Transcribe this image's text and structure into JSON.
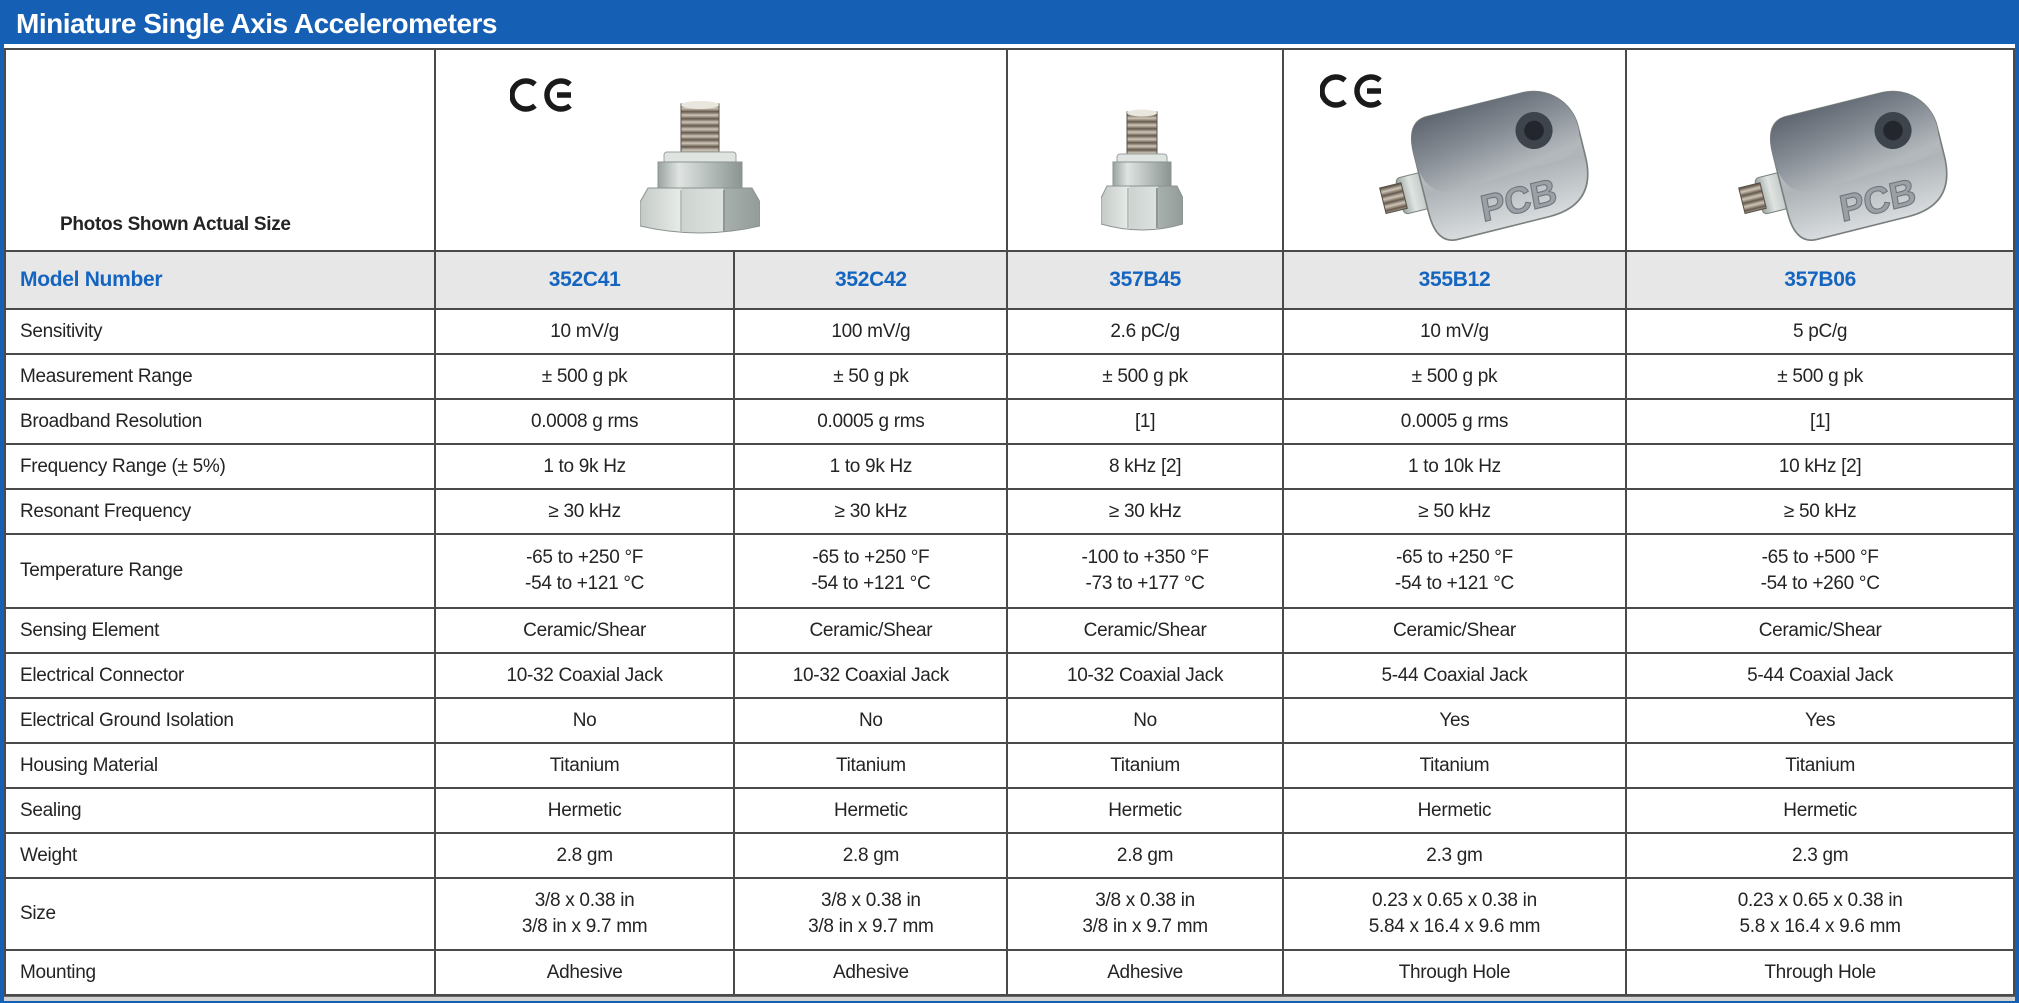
{
  "title": "Miniature Single Axis Accelerometers",
  "photo_row": {
    "label": "Photos Shown Actual Size",
    "ce_mark_cells": [
      "352C41/352C42",
      "355B12"
    ]
  },
  "model_row": {
    "label": "Model Number",
    "models": [
      "352C41",
      "352C42",
      "357B45",
      "355B12",
      "357B06"
    ]
  },
  "specs": [
    {
      "label": "Sensitivity",
      "values": [
        "10 mV/g",
        "100 mV/g",
        "2.6 pC/g",
        "10 mV/g",
        "5 pC/g"
      ]
    },
    {
      "label": "Measurement Range",
      "values": [
        "± 500 g pk",
        "± 50 g pk",
        "± 500 g pk",
        "± 500 g pk",
        "± 500 g pk"
      ]
    },
    {
      "label": "Broadband Resolution",
      "values": [
        "0.0008 g rms",
        "0.0005 g rms",
        "[1]",
        "0.0005 g rms",
        "[1]"
      ]
    },
    {
      "label": "Frequency Range (± 5%)",
      "values": [
        "1 to 9k Hz",
        "1 to 9k Hz",
        "8 kHz [2]",
        "1 to 10k Hz",
        "10 kHz [2]"
      ]
    },
    {
      "label": "Resonant Frequency",
      "values": [
        "≥ 30 kHz",
        "≥ 30 kHz",
        "≥ 30 kHz",
        "≥ 50 kHz",
        "≥ 50 kHz"
      ]
    },
    {
      "label": "Temperature Range",
      "values": [
        "-65 to +250 °F\n-54 to +121 °C",
        "-65 to +250 °F\n-54 to +121 °C",
        "-100 to +350 °F\n-73 to +177 °C",
        "-65 to +250 °F\n-54 to +121 °C",
        "-65 to +500 °F\n-54 to +260 °C"
      ]
    },
    {
      "label": "Sensing Element",
      "values": [
        "Ceramic/Shear",
        "Ceramic/Shear",
        "Ceramic/Shear",
        "Ceramic/Shear",
        "Ceramic/Shear"
      ]
    },
    {
      "label": "Electrical Connector",
      "values": [
        "10-32 Coaxial Jack",
        "10-32 Coaxial Jack",
        "10-32 Coaxial Jack",
        "5-44 Coaxial Jack",
        "5-44 Coaxial Jack"
      ]
    },
    {
      "label": "Electrical Ground Isolation",
      "values": [
        "No",
        "No",
        "No",
        "Yes",
        "Yes"
      ]
    },
    {
      "label": "Housing Material",
      "values": [
        "Titanium",
        "Titanium",
        "Titanium",
        "Titanium",
        "Titanium"
      ]
    },
    {
      "label": "Sealing",
      "values": [
        "Hermetic",
        "Hermetic",
        "Hermetic",
        "Hermetic",
        "Hermetic"
      ]
    },
    {
      "label": "Weight",
      "values": [
        "2.8 gm",
        "2.8 gm",
        "2.8 gm",
        "2.3 gm",
        "2.3 gm"
      ]
    },
    {
      "label": "Size",
      "values": [
        "3/8 x 0.38 in\n3/8 in x 9.7 mm",
        "3/8 x 0.38 in\n3/8 in x 9.7 mm",
        "3/8 x 0.38 in\n3/8 in x 9.7 mm",
        "0.23 x 0.65 x 0.38 in\n5.84 x 16.4 x 9.6 mm",
        "0.23 x 0.65 x 0.38 in\n5.8 x 16.4 x 9.6 mm"
      ]
    },
    {
      "label": "Mounting",
      "values": [
        "Adhesive",
        "Adhesive",
        "Adhesive",
        "Through Hole",
        "Through Hole"
      ]
    }
  ],
  "colors": {
    "header_blue": "#1560b4",
    "model_text_blue": "#1565c0",
    "model_row_bg": "#e7e7e7",
    "grid_line": "#4a4a4a"
  }
}
